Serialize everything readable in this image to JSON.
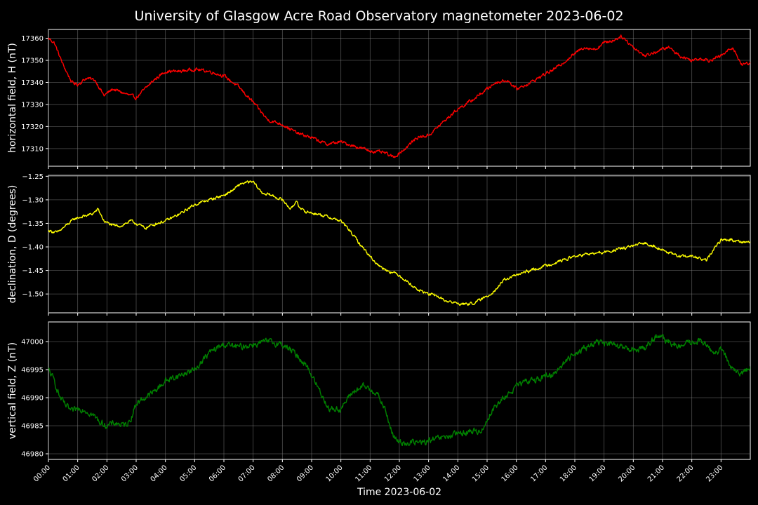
{
  "chart_data": {
    "type": "line",
    "title": "University of Glasgow Acre Road Observatory magnetometer 2023-06-02",
    "xlabel": "Time 2023-06-02",
    "grid": true,
    "x_ticks": [
      "00:00",
      "01:00",
      "02:00",
      "03:00",
      "04:00",
      "05:00",
      "06:00",
      "07:00",
      "08:00",
      "09:00",
      "10:00",
      "11:00",
      "12:00",
      "13:00",
      "14:00",
      "15:00",
      "16:00",
      "17:00",
      "18:00",
      "19:00",
      "20:00",
      "21:00",
      "22:00",
      "23:00"
    ],
    "xlim_hours": [
      0,
      24
    ],
    "panels": [
      {
        "name": "horizontal",
        "ylabel": "horizontal field, H (nT)",
        "color": "#ff0000",
        "ylim": [
          17302,
          17364
        ],
        "y_ticks": [
          "17310",
          "17320",
          "17330",
          "17340",
          "17350",
          "17360"
        ],
        "y_tick_values": [
          17310,
          17320,
          17330,
          17340,
          17350,
          17360
        ],
        "noise": 0.6,
        "hours": [
          0,
          0.2,
          0.5,
          0.8,
          1.0,
          1.3,
          1.6,
          1.9,
          2.2,
          2.6,
          3.0,
          3.3,
          3.6,
          4.0,
          4.5,
          5.0,
          5.5,
          6.0,
          6.5,
          7.0,
          7.5,
          8.0,
          8.5,
          9.0,
          9.5,
          10.0,
          10.5,
          11.0,
          11.5,
          11.8,
          12.2,
          12.6,
          13.0,
          13.5,
          14.0,
          14.5,
          15.0,
          15.3,
          15.7,
          16.0,
          16.5,
          17.0,
          17.3,
          17.6,
          18.0,
          18.3,
          18.7,
          19.0,
          19.3,
          19.6,
          20.0,
          20.4,
          20.8,
          21.2,
          21.6,
          22.0,
          22.3,
          22.6,
          23.0,
          23.4,
          23.7,
          24.0
        ],
        "values": [
          17360,
          17358,
          17348,
          17340,
          17339,
          17342,
          17341,
          17334,
          17337,
          17335,
          17333,
          17337,
          17341,
          17345,
          17345,
          17346,
          17345,
          17343,
          17338,
          17331,
          17323,
          17321,
          17317,
          17315,
          17312,
          17313,
          17311,
          17309,
          17308,
          17306,
          17310,
          17315,
          17316,
          17322,
          17328,
          17332,
          17337,
          17340,
          17341,
          17337,
          17340,
          17344,
          17346,
          17349,
          17353,
          17356,
          17355,
          17358,
          17359,
          17361,
          17356,
          17352,
          17354,
          17356,
          17352,
          17350,
          17351,
          17350,
          17352,
          17356,
          17348,
          17349
        ]
      },
      {
        "name": "declination",
        "ylabel": "declination, D (degrees)",
        "color": "#ffff00",
        "ylim": [
          -1.54,
          -1.248
        ],
        "y_ticks": [
          "−1.25",
          "−1.30",
          "−1.35",
          "−1.40",
          "−1.45",
          "−1.50"
        ],
        "y_tick_values": [
          -1.25,
          -1.3,
          -1.35,
          -1.4,
          -1.45,
          -1.5
        ],
        "noise": 0.0025,
        "hours": [
          0,
          0.3,
          0.6,
          0.9,
          1.2,
          1.5,
          1.7,
          1.9,
          2.2,
          2.5,
          2.8,
          3.0,
          3.3,
          3.7,
          4.0,
          4.5,
          5.0,
          5.5,
          6.0,
          6.3,
          6.6,
          7.0,
          7.3,
          7.6,
          8.0,
          8.3,
          8.5,
          8.6,
          8.8,
          9.2,
          9.5,
          10.0,
          10.3,
          10.6,
          11.0,
          11.3,
          11.6,
          12.0,
          12.3,
          12.6,
          13.0,
          13.3,
          13.6,
          14.0,
          14.3,
          14.6,
          15.0,
          15.3,
          15.6,
          16.0,
          16.5,
          17.0,
          17.5,
          18.0,
          18.5,
          19.0,
          19.5,
          20.0,
          20.4,
          20.8,
          21.3,
          21.6,
          22.0,
          22.3,
          22.5,
          22.8,
          23.0,
          23.3,
          23.6,
          24.0
        ],
        "values": [
          -1.365,
          -1.37,
          -1.355,
          -1.34,
          -1.335,
          -1.33,
          -1.32,
          -1.345,
          -1.355,
          -1.355,
          -1.345,
          -1.35,
          -1.36,
          -1.35,
          -1.345,
          -1.33,
          -1.31,
          -1.3,
          -1.29,
          -1.28,
          -1.265,
          -1.262,
          -1.285,
          -1.29,
          -1.3,
          -1.32,
          -1.3,
          -1.32,
          -1.325,
          -1.33,
          -1.335,
          -1.345,
          -1.365,
          -1.39,
          -1.42,
          -1.44,
          -1.45,
          -1.46,
          -1.475,
          -1.49,
          -1.5,
          -1.505,
          -1.515,
          -1.52,
          -1.522,
          -1.518,
          -1.505,
          -1.49,
          -1.47,
          -1.46,
          -1.45,
          -1.44,
          -1.43,
          -1.42,
          -1.415,
          -1.412,
          -1.405,
          -1.398,
          -1.392,
          -1.4,
          -1.415,
          -1.42,
          -1.42,
          -1.425,
          -1.43,
          -1.4,
          -1.385,
          -1.385,
          -1.388,
          -1.39
        ]
      },
      {
        "name": "vertical",
        "ylabel": "vertical field, Z (nT)",
        "color": "#008000",
        "ylim": [
          46979,
          47003.5
        ],
        "y_ticks": [
          "46980",
          "46985",
          "46990",
          "46995",
          "47000"
        ],
        "y_tick_values": [
          46980,
          46985,
          46990,
          46995,
          47000
        ],
        "noise": 0.45,
        "hours": [
          0,
          0.2,
          0.4,
          0.6,
          0.8,
          1.0,
          1.2,
          1.5,
          1.8,
          2.0,
          2.3,
          2.6,
          2.8,
          3.0,
          3.3,
          3.6,
          4.0,
          4.5,
          5.0,
          5.5,
          6.0,
          6.5,
          7.0,
          7.5,
          8.0,
          8.4,
          8.8,
          9.2,
          9.6,
          10.0,
          10.4,
          10.8,
          11.2,
          11.5,
          11.8,
          12.0,
          12.4,
          12.8,
          13.2,
          13.6,
          14.0,
          14.4,
          14.8,
          15.2,
          15.6,
          16.0,
          16.4,
          16.8,
          17.2,
          17.6,
          18.0,
          18.4,
          18.8,
          19.2,
          19.6,
          20.0,
          20.4,
          20.8,
          21.2,
          21.6,
          22.0,
          22.4,
          22.7,
          23.0,
          23.3,
          23.6,
          24.0
        ],
        "values": [
          46995,
          46993,
          46990,
          46988.5,
          46987.5,
          46988,
          46988,
          46987,
          46985.5,
          46985,
          46985.5,
          46985,
          46986,
          46989,
          46990,
          46991,
          46993,
          46994,
          46995,
          46998,
          46999.5,
          46999,
          46999.5,
          47000,
          46999.5,
          46998,
          46996,
          46992,
          46988,
          46988,
          46991,
          46992,
          46991,
          46988,
          46983,
          46982,
          46982,
          46982,
          46982.5,
          46983,
          46983.5,
          46984,
          46984,
          46988,
          46990,
          46992,
          46993,
          46993.5,
          46994,
          46996,
          46998,
          46999,
          47000,
          46999.5,
          46999,
          46998.5,
          46999,
          47001,
          47000,
          46999,
          47000,
          47000,
          46998,
          46998.5,
          46996,
          46994,
          46995.5
        ]
      }
    ]
  }
}
